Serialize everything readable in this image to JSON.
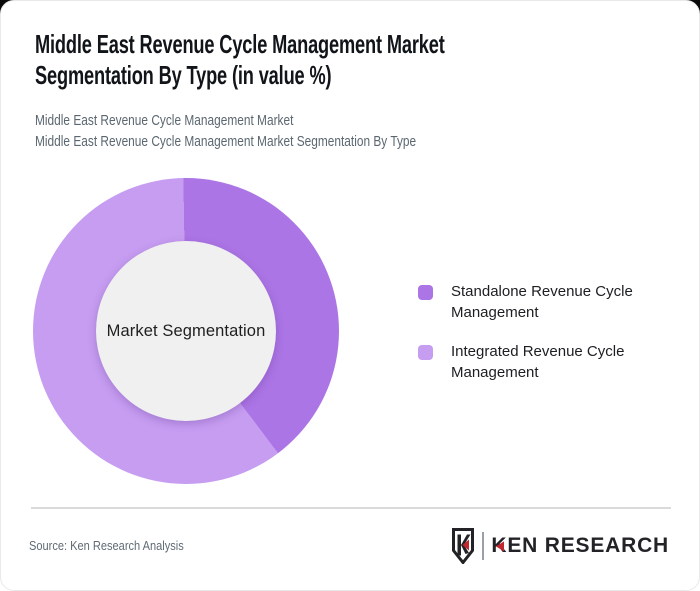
{
  "header": {
    "title": "Middle East Revenue Cycle Management Market Segmentation By Type (in value %)",
    "subtitles": [
      "Middle East Revenue Cycle Management Market",
      "Middle East Revenue Cycle Management Market Segmentation By Type"
    ]
  },
  "chart_data": {
    "type": "pie",
    "variant": "donut",
    "title": "Middle East Revenue Cycle Management Market Segmentation By Type (in value %)",
    "center_label": "Market Segmentation",
    "unit": "value %",
    "categories": [
      "Standalone Revenue Cycle Management",
      "Integrated Revenue Cycle Management"
    ],
    "values": [
      40,
      60
    ],
    "colors": [
      "#ac75e5",
      "#c69df1"
    ],
    "start_angle_deg": -1,
    "legend_position": "right",
    "data_labels_shown": false,
    "hole_color": "#f0f0f0"
  },
  "footer": {
    "source": "Source: Ken Research Analysis",
    "logo_first_letter": "K",
    "logo_text_rest": "EN RESEARCH"
  },
  "colors": {
    "standalone_purple": "#ac75e5",
    "integrated_purple": "#c69df1",
    "donut_hole": "#f0f0f0",
    "logo_red": "#c1272d",
    "logo_dark": "#232327",
    "title_text": "#111418",
    "subtitle_text": "#5b6770",
    "top_background": "#0a0a0b"
  }
}
